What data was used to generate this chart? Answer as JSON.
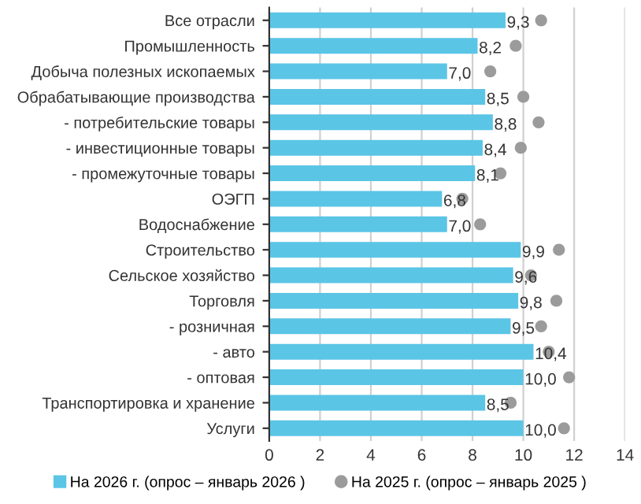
{
  "chart_data": {
    "type": "bar",
    "orientation": "horizontal",
    "categories": [
      "Все отрасли",
      "Промышленность",
      "Добыча полезных ископаемых",
      "Обрабатывающие производства",
      "- потребительские товары",
      "- инвестиционные товары",
      "- промежуточные товары",
      "ОЭГП",
      "Водоснабжение",
      "Строительство",
      "Сельское хозяйство",
      "Торговля",
      "- розничная",
      "- авто",
      "- оптовая",
      "Транспортировка и хранение",
      "Услуги"
    ],
    "series": [
      {
        "name": "На 2026 г. (опрос – январь 2026 )",
        "color": "#5bc5e6",
        "values": [
          9.3,
          8.2,
          7.0,
          8.5,
          8.8,
          8.4,
          8.1,
          6.8,
          7.0,
          9.9,
          9.6,
          9.8,
          9.5,
          10.4,
          10.0,
          8.5,
          10.0
        ],
        "value_labels": [
          "9,3",
          "8,2",
          "7,0",
          "8,5",
          "8,8",
          "8,4",
          "8,1",
          "6,8",
          "7,0",
          "9,9",
          "9,6",
          "9,8",
          "9,5",
          "10,4",
          "10,0",
          "8,5",
          "10,0"
        ]
      },
      {
        "name": "На 2025 г. (опрос – январь 2025 )",
        "type": "scatter",
        "marker": "circle",
        "color": "#9b9b9b",
        "values": [
          10.7,
          9.7,
          8.7,
          10.0,
          10.6,
          9.9,
          9.1,
          7.6,
          8.3,
          11.4,
          10.3,
          11.3,
          10.7,
          11.0,
          11.8,
          9.5,
          11.6
        ]
      }
    ],
    "xlim": [
      0,
      14
    ],
    "xticks": [
      0,
      2,
      4,
      6,
      8,
      10,
      12,
      14
    ],
    "grid": "x",
    "legend": "bottom"
  }
}
